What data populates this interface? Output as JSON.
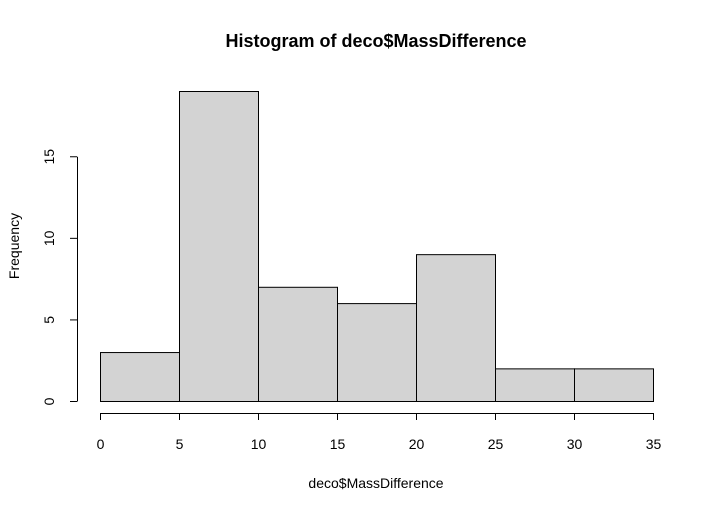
{
  "chart_data": {
    "type": "bar",
    "title": "Histogram of deco$MassDifference",
    "xlabel": "deco$MassDifference",
    "ylabel": "Frequency",
    "bins": [
      {
        "start": 0,
        "end": 5,
        "count": 3
      },
      {
        "start": 5,
        "end": 10,
        "count": 19
      },
      {
        "start": 10,
        "end": 15,
        "count": 7
      },
      {
        "start": 15,
        "end": 20,
        "count": 6
      },
      {
        "start": 20,
        "end": 25,
        "count": 9
      },
      {
        "start": 25,
        "end": 30,
        "count": 2
      },
      {
        "start": 30,
        "end": 35,
        "count": 2
      }
    ],
    "xlim": [
      0,
      35
    ],
    "ylim": [
      0,
      19
    ],
    "xticks": [
      0,
      5,
      10,
      15,
      20,
      25,
      30,
      35
    ],
    "yticks": [
      0,
      5,
      10,
      15
    ],
    "bar_color": "#d3d3d3",
    "grid": false,
    "legend": "none"
  }
}
